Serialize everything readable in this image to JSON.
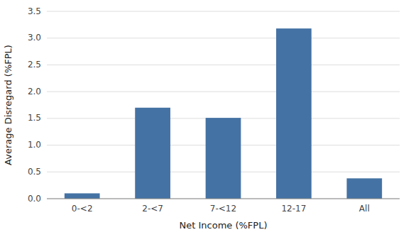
{
  "chart_data": {
    "type": "bar",
    "categories": [
      "0-<2",
      "2-<7",
      "7-<12",
      "12-17",
      "All"
    ],
    "values": [
      0.1,
      1.7,
      1.51,
      3.18,
      0.38
    ],
    "color": "#4472a4",
    "xlabel": "Net Income (%FPL)",
    "ylabel": "Average Disregard (%FPL)",
    "ylim": [
      0,
      3.5
    ],
    "yticks": [
      {
        "value": 0.0,
        "label": "0.0"
      },
      0.5,
      {
        "value": 1.0,
        "label": "1.0"
      },
      1.5,
      {
        "value": 2.0,
        "label": "2.0"
      },
      2.5,
      {
        "value": 3.0,
        "label": "3.0"
      },
      3.5
    ],
    "grid": true
  }
}
